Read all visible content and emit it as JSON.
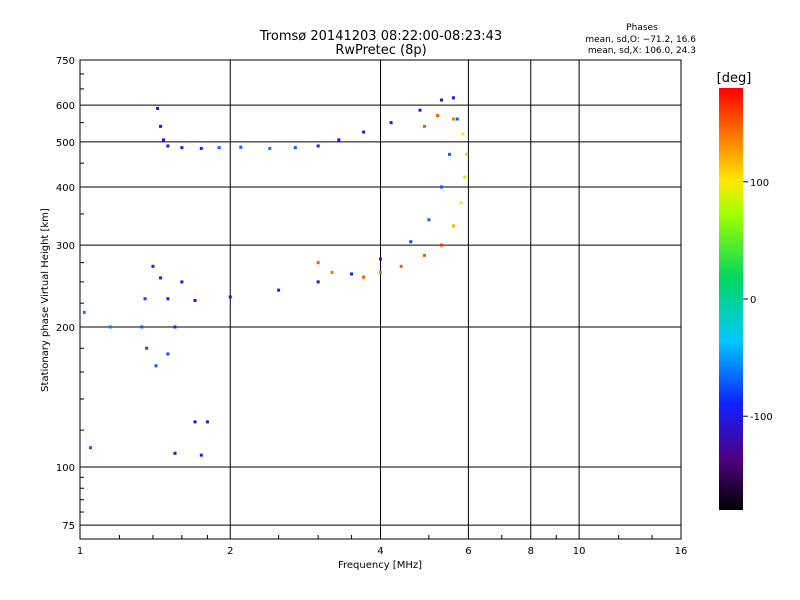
{
  "chart_data": {
    "type": "scatter",
    "title": "Tromsø 20141203 08:22:00-08:23:43",
    "subtitle": "RwPretec (8p)",
    "xlabel": "Frequency [MHz]",
    "ylabel": "Stationary phase Virtual Height [km]",
    "x_scale": "log",
    "y_scale": "log",
    "xlim": [
      1,
      16
    ],
    "ylim": [
      70,
      750
    ],
    "x_ticks": [
      1,
      2,
      4,
      6,
      8,
      10,
      16
    ],
    "y_ticks": [
      75,
      100,
      200,
      300,
      400,
      500,
      600,
      750
    ],
    "grid": true,
    "phases_box": {
      "title": "Phases",
      "line1": "mean, sd,O: −71.2, 16.6",
      "line2": "mean, sd,X: 106.0, 24.3"
    },
    "colorbar": {
      "label": "[deg]",
      "range": [
        -180,
        180
      ],
      "ticks": [
        100,
        0,
        -100
      ],
      "colormap": "rainbow"
    },
    "series": [
      {
        "values": [
          {
            "x": 1.43,
            "y": 590,
            "phase": -110
          },
          {
            "x": 1.45,
            "y": 540,
            "phase": -100
          },
          {
            "x": 1.47,
            "y": 505,
            "phase": -105
          },
          {
            "x": 1.5,
            "y": 490,
            "phase": -100
          },
          {
            "x": 1.6,
            "y": 486,
            "phase": -100
          },
          {
            "x": 1.75,
            "y": 484,
            "phase": -90
          },
          {
            "x": 1.9,
            "y": 486,
            "phase": -70
          },
          {
            "x": 2.1,
            "y": 487,
            "phase": -70
          },
          {
            "x": 2.4,
            "y": 484,
            "phase": -60
          },
          {
            "x": 2.7,
            "y": 486,
            "phase": -70
          },
          {
            "x": 3.0,
            "y": 490,
            "phase": -90
          },
          {
            "x": 3.3,
            "y": 505,
            "phase": -100
          },
          {
            "x": 3.7,
            "y": 525,
            "phase": -100
          },
          {
            "x": 4.2,
            "y": 550,
            "phase": -90
          },
          {
            "x": 4.8,
            "y": 585,
            "phase": -100
          },
          {
            "x": 5.3,
            "y": 615,
            "phase": -110
          },
          {
            "x": 5.6,
            "y": 622,
            "phase": -90
          },
          {
            "x": 5.7,
            "y": 560,
            "phase": -70
          },
          {
            "x": 5.5,
            "y": 470,
            "phase": -70
          },
          {
            "x": 5.3,
            "y": 400,
            "phase": -70
          },
          {
            "x": 5.0,
            "y": 340,
            "phase": -70
          },
          {
            "x": 4.6,
            "y": 305,
            "phase": -80
          },
          {
            "x": 4.0,
            "y": 280,
            "phase": -90
          },
          {
            "x": 3.5,
            "y": 260,
            "phase": -90
          },
          {
            "x": 3.0,
            "y": 250,
            "phase": -100
          },
          {
            "x": 2.5,
            "y": 240,
            "phase": -100
          },
          {
            "x": 2.0,
            "y": 232,
            "phase": -100
          },
          {
            "x": 1.7,
            "y": 228,
            "phase": -100
          },
          {
            "x": 1.5,
            "y": 230,
            "phase": -90
          },
          {
            "x": 1.45,
            "y": 255,
            "phase": -100
          },
          {
            "x": 1.4,
            "y": 270,
            "phase": -90
          },
          {
            "x": 1.35,
            "y": 230,
            "phase": -80
          },
          {
            "x": 1.33,
            "y": 200,
            "phase": -70
          },
          {
            "x": 1.36,
            "y": 180,
            "phase": -75
          },
          {
            "x": 1.42,
            "y": 165,
            "phase": -70
          },
          {
            "x": 1.5,
            "y": 175,
            "phase": -80
          },
          {
            "x": 1.55,
            "y": 200,
            "phase": -90
          },
          {
            "x": 1.6,
            "y": 250,
            "phase": -100
          },
          {
            "x": 1.7,
            "y": 125,
            "phase": -110
          },
          {
            "x": 1.8,
            "y": 125,
            "phase": -100
          },
          {
            "x": 1.55,
            "y": 107,
            "phase": -110
          },
          {
            "x": 1.75,
            "y": 106,
            "phase": -100
          },
          {
            "x": 1.05,
            "y": 110,
            "phase": -70
          },
          {
            "x": 1.02,
            "y": 215,
            "phase": -60
          },
          {
            "x": 1.15,
            "y": 200,
            "phase": -60
          }
        ]
      },
      {
        "values": [
          {
            "x": 3.7,
            "y": 256,
            "phase": 150
          },
          {
            "x": 4.0,
            "y": 262,
            "phase": 140
          },
          {
            "x": 4.4,
            "y": 270,
            "phase": 150
          },
          {
            "x": 4.9,
            "y": 285,
            "phase": 150
          },
          {
            "x": 5.3,
            "y": 300,
            "phase": 160
          },
          {
            "x": 5.6,
            "y": 330,
            "phase": 120
          },
          {
            "x": 5.8,
            "y": 370,
            "phase": 100
          },
          {
            "x": 5.9,
            "y": 420,
            "phase": 80
          },
          {
            "x": 5.95,
            "y": 470,
            "phase": 80
          },
          {
            "x": 5.85,
            "y": 520,
            "phase": 100
          },
          {
            "x": 5.6,
            "y": 560,
            "phase": 140
          },
          {
            "x": 5.2,
            "y": 570,
            "phase": 150
          },
          {
            "x": 4.9,
            "y": 540,
            "phase": 150
          },
          {
            "x": 3.2,
            "y": 262,
            "phase": 140
          },
          {
            "x": 3.0,
            "y": 275,
            "phase": 150
          }
        ]
      }
    ]
  }
}
